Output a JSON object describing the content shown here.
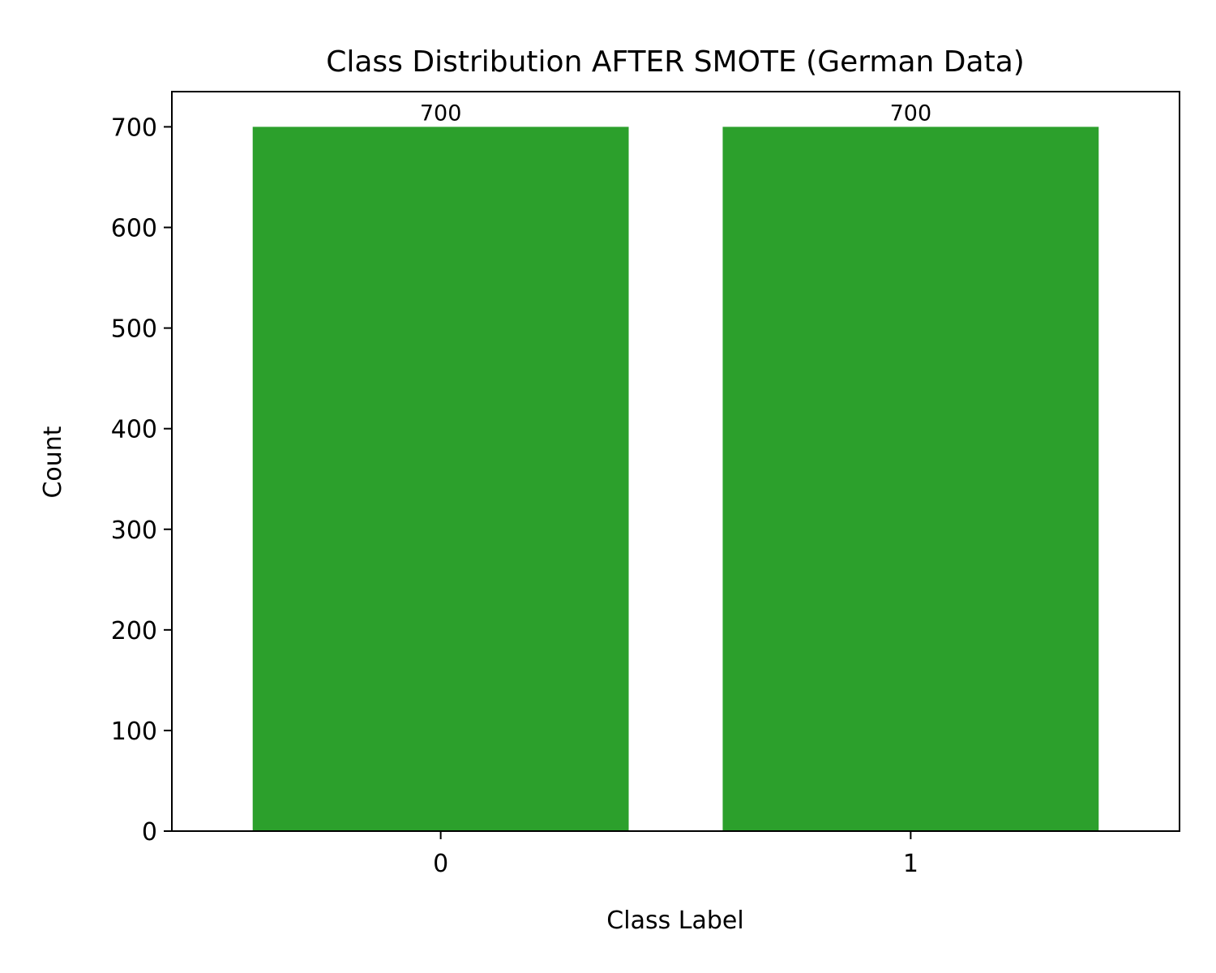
{
  "chart_data": {
    "type": "bar",
    "title": "Class Distribution AFTER SMOTE (German Data)",
    "xlabel": "Class Label",
    "ylabel": "Count",
    "categories": [
      "0",
      "1"
    ],
    "values": [
      700,
      700
    ],
    "ylim": [
      0,
      735
    ],
    "yticks": [
      0,
      100,
      200,
      300,
      400,
      500,
      600,
      700
    ],
    "bar_color": "#2ca02c",
    "data_labels": [
      "700",
      "700"
    ],
    "grid": false,
    "legend": "none"
  }
}
